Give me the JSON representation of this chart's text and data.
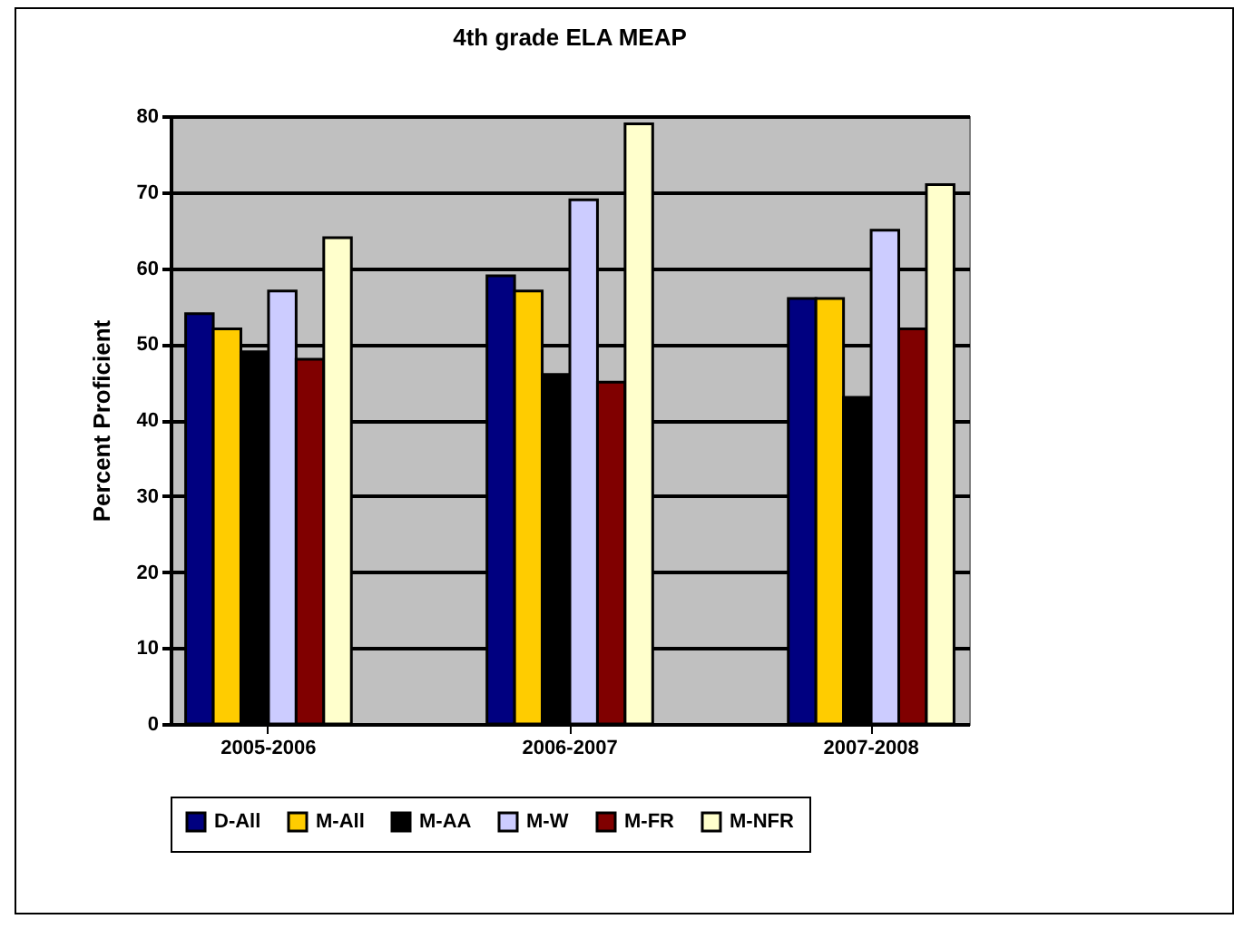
{
  "chart_data": {
    "type": "bar",
    "title": "4th grade ELA MEAP",
    "ylabel": "Percent Proficient",
    "categories": [
      "2005-2006",
      "2006-2007",
      "2007-2008"
    ],
    "series": [
      {
        "name": "D-All",
        "color": "#000080",
        "values": [
          54,
          59,
          56
        ]
      },
      {
        "name": "M-All",
        "color": "#ffcc00",
        "values": [
          52,
          57,
          56
        ]
      },
      {
        "name": "M-AA",
        "color": "#000000",
        "values": [
          49,
          46,
          43
        ]
      },
      {
        "name": "M-W",
        "color": "#ccccff",
        "values": [
          57,
          69,
          65
        ]
      },
      {
        "name": "M-FR",
        "color": "#800000",
        "values": [
          48,
          45,
          52
        ]
      },
      {
        "name": "M-NFR",
        "color": "#ffffcc",
        "values": [
          64,
          79,
          71
        ]
      }
    ],
    "ylim": [
      0,
      80
    ],
    "yticks": [
      0,
      10,
      20,
      30,
      40,
      50,
      60,
      70,
      80
    ],
    "grid": "y",
    "legend": "bottom"
  }
}
